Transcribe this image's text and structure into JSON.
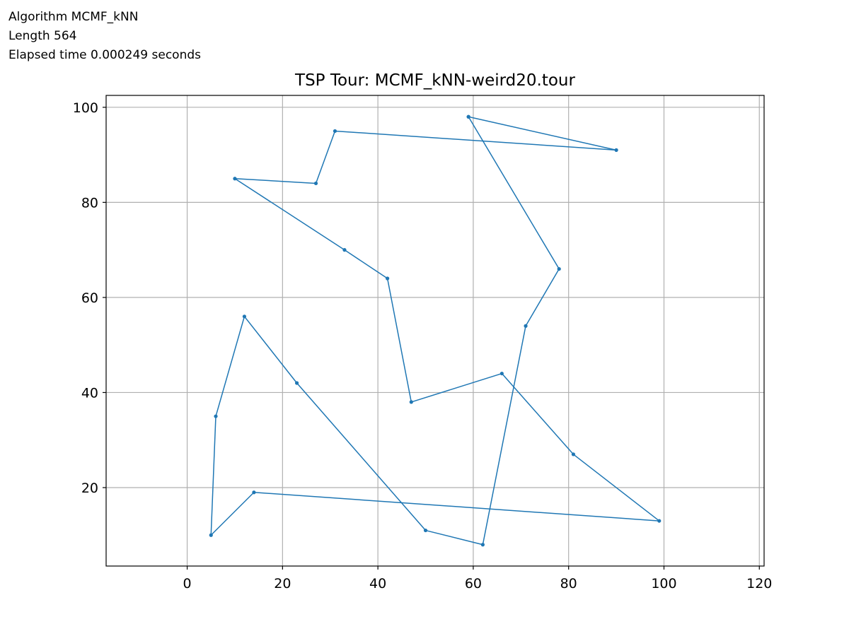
{
  "header": {
    "algorithm_line": "Algorithm MCMF_kNN",
    "length_line": "Length 564",
    "elapsed_line": "Elapsed time 0.000249 seconds"
  },
  "chart_data": {
    "type": "line",
    "title": "TSP Tour: MCMF_kNN-weird20.tour",
    "xlabel": "",
    "ylabel": "",
    "xlim": [
      -17,
      121
    ],
    "ylim": [
      3.5,
      102.5
    ],
    "xticks": [
      0,
      20,
      40,
      60,
      80,
      100,
      120
    ],
    "yticks": [
      20,
      40,
      60,
      80,
      100
    ],
    "grid": true,
    "line_color": "#1f77b4",
    "series": [
      {
        "points": [
          [
            59,
            98
          ],
          [
            90,
            91
          ],
          [
            31,
            95
          ],
          [
            27,
            84
          ],
          [
            10,
            85
          ],
          [
            33,
            70
          ],
          [
            42,
            64
          ],
          [
            47,
            38
          ],
          [
            66,
            44
          ],
          [
            81,
            27
          ],
          [
            99,
            13
          ],
          [
            14,
            19
          ],
          [
            5,
            10
          ],
          [
            6,
            35
          ],
          [
            12,
            56
          ],
          [
            23,
            42
          ],
          [
            50,
            11
          ],
          [
            62,
            8
          ],
          [
            71,
            54
          ],
          [
            78,
            66
          ],
          [
            59,
            98
          ]
        ]
      }
    ]
  }
}
